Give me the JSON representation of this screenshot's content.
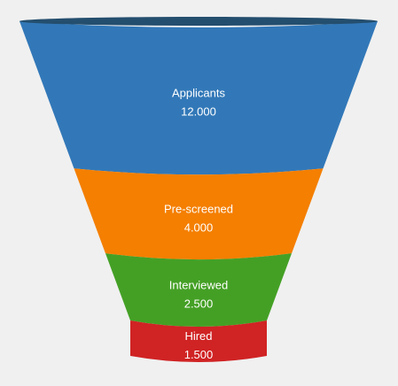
{
  "chart_data": {
    "type": "funnel",
    "title": "",
    "categories": [
      "Applicants",
      "Pre-screened",
      "Interviewed",
      "Hired"
    ],
    "values": [
      12000,
      4000,
      2500,
      1500
    ],
    "value_labels": [
      "12.000",
      "4.000",
      "2.500",
      "1.500"
    ],
    "colors": [
      "#3278b8",
      "#f47f00",
      "#44a025",
      "#d02324"
    ],
    "top_color": "#244e6e",
    "legend": "none",
    "grid": false
  }
}
